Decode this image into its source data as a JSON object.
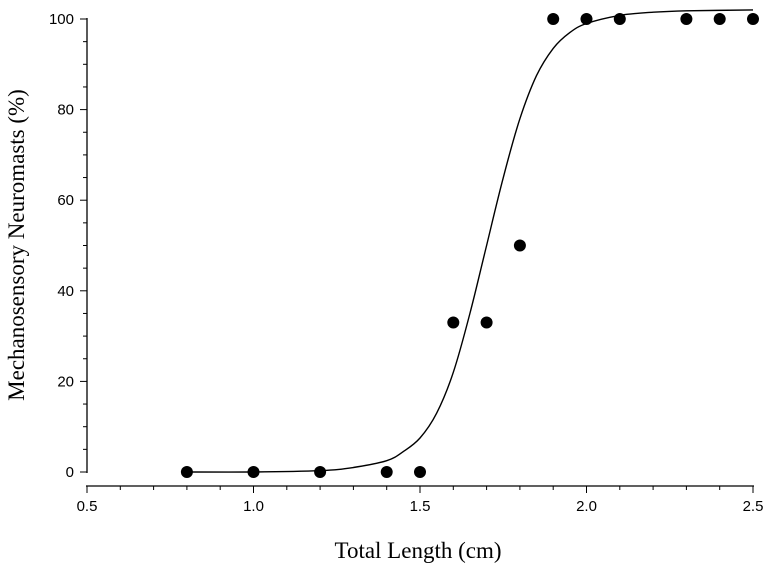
{
  "chart_data": {
    "type": "scatter",
    "xlabel": "Total Length (cm)",
    "ylabel": "Mechanosensory Neuromasts (%)",
    "xlim": [
      0.5,
      2.5
    ],
    "ylim": [
      0,
      100
    ],
    "x_ticks": [
      "0.5",
      "1.0",
      "1.5",
      "2.0",
      "2.5"
    ],
    "y_ticks": [
      "0",
      "20",
      "40",
      "60",
      "80",
      "100"
    ],
    "grid": false,
    "legend": "none",
    "series": [
      {
        "kind": "points",
        "x": [
          0.8,
          1.0,
          1.2,
          1.4,
          1.5,
          1.6,
          1.7,
          1.8,
          1.9,
          2.0,
          2.1,
          2.3,
          2.4,
          2.5
        ],
        "y": [
          0,
          0,
          0,
          0,
          0,
          33,
          33,
          50,
          100,
          100,
          100,
          100,
          100,
          100
        ]
      },
      {
        "kind": "fit-curve",
        "x": [
          0.8,
          1.0,
          1.2,
          1.3,
          1.4,
          1.45,
          1.5,
          1.55,
          1.6,
          1.65,
          1.7,
          1.75,
          1.8,
          1.85,
          1.9,
          1.95,
          2.0,
          2.1,
          2.2,
          2.3,
          2.5
        ],
        "y": [
          0,
          0,
          0.3,
          1,
          2.5,
          4.5,
          7.5,
          13,
          22,
          35,
          50,
          65,
          78,
          87.5,
          93.5,
          97,
          99,
          100.8,
          101.5,
          101.8,
          102
        ]
      }
    ],
    "colors": {
      "points": "#000000",
      "curve": "#000000",
      "axis": "#000000"
    }
  }
}
